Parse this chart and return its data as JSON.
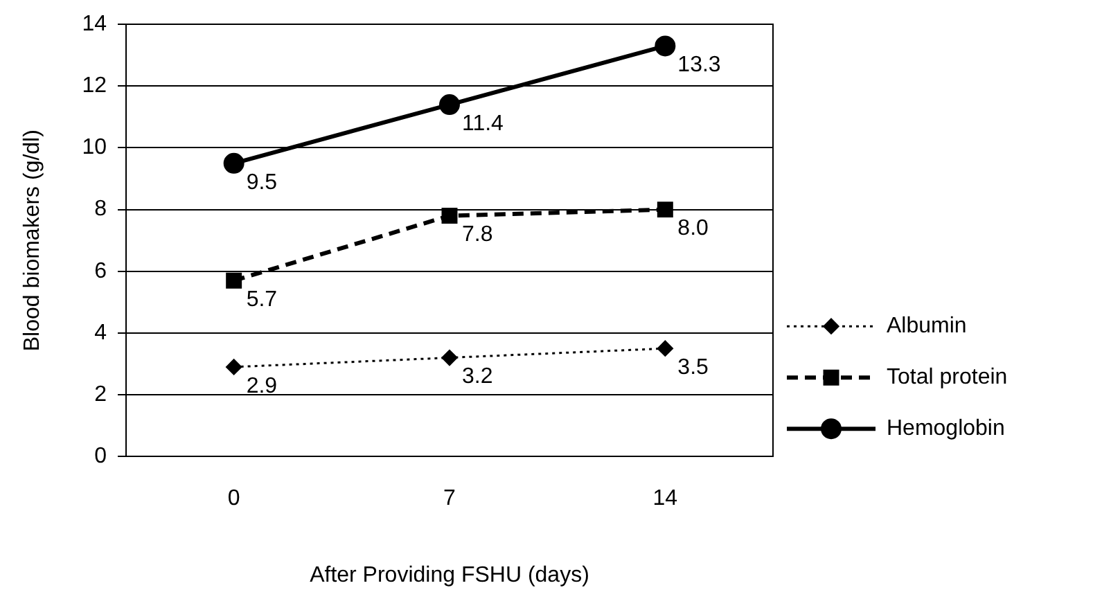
{
  "chart_data": {
    "type": "line",
    "xlabel": "After Providing FSHU (days)",
    "ylabel": "Blood biomakers (g/dl)",
    "categories": [
      "0",
      "7",
      "14"
    ],
    "series": [
      {
        "name": "Albumin",
        "color": "#000000",
        "values": [
          2.9,
          3.2,
          3.5
        ],
        "value_labels": [
          "2.9",
          "3.2",
          "3.5"
        ],
        "marker": "diamond",
        "line_style": "dotted"
      },
      {
        "name": "Total protein",
        "color": "#000000",
        "values": [
          5.7,
          7.8,
          8.0
        ],
        "value_labels": [
          "5.7",
          "7.8",
          "8.0"
        ],
        "marker": "square",
        "line_style": "dashed"
      },
      {
        "name": "Hemoglobin",
        "color": "#000000",
        "values": [
          9.5,
          11.4,
          13.3
        ],
        "value_labels": [
          "9.5",
          "11.4",
          "13.3"
        ],
        "marker": "circle",
        "line_style": "solid"
      }
    ],
    "ylim": [
      0,
      14
    ],
    "yticks": [
      0,
      2,
      4,
      6,
      8,
      10,
      12,
      14
    ],
    "grid": "y",
    "legend": "right"
  }
}
